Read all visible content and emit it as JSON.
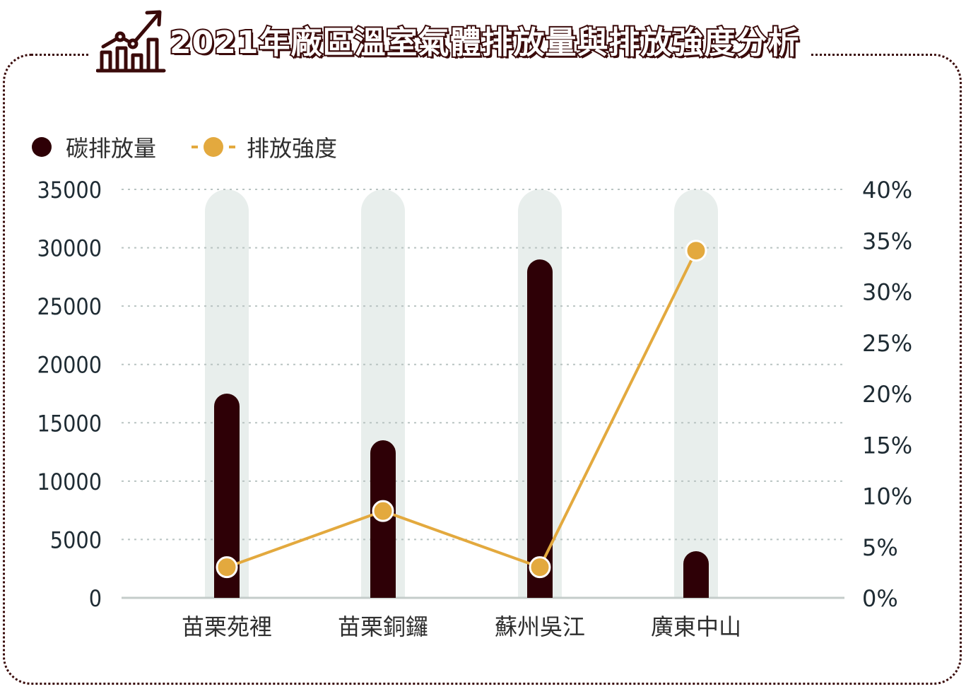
{
  "title": "2021年廠區溫室氣體排放量與排放強度分析",
  "icon": "chart-growth-icon",
  "colors": {
    "bar": "#2e0006",
    "line": "#e3a93e",
    "track": "#e8eeec",
    "grid": "#b9c4c2",
    "border": "#3a0a0a"
  },
  "legend": {
    "bar_label": "碳排放量",
    "line_label": "排放強度"
  },
  "chart_data": {
    "type": "bar",
    "categories": [
      "苗栗苑裡",
      "苗栗銅鑼",
      "蘇州吳江",
      "廣東中山"
    ],
    "series": [
      {
        "name": "碳排放量",
        "type": "bar",
        "axis": "left",
        "values": [
          17500,
          13500,
          29000,
          4000
        ]
      },
      {
        "name": "排放強度",
        "type": "line",
        "axis": "right",
        "values": [
          3.0,
          8.5,
          3.0,
          34.0
        ]
      }
    ],
    "y_left": {
      "ylim": [
        0,
        35000
      ],
      "ticks": [
        "0",
        "5000",
        "10000",
        "15000",
        "20000",
        "25000",
        "30000",
        "35000"
      ]
    },
    "y_right": {
      "ylim": [
        0,
        40
      ],
      "ticks": [
        "0%",
        "5%",
        "10%",
        "15%",
        "20%",
        "25%",
        "30%",
        "35%",
        "40%"
      ]
    },
    "grid": true,
    "legend_position": "top-left"
  }
}
